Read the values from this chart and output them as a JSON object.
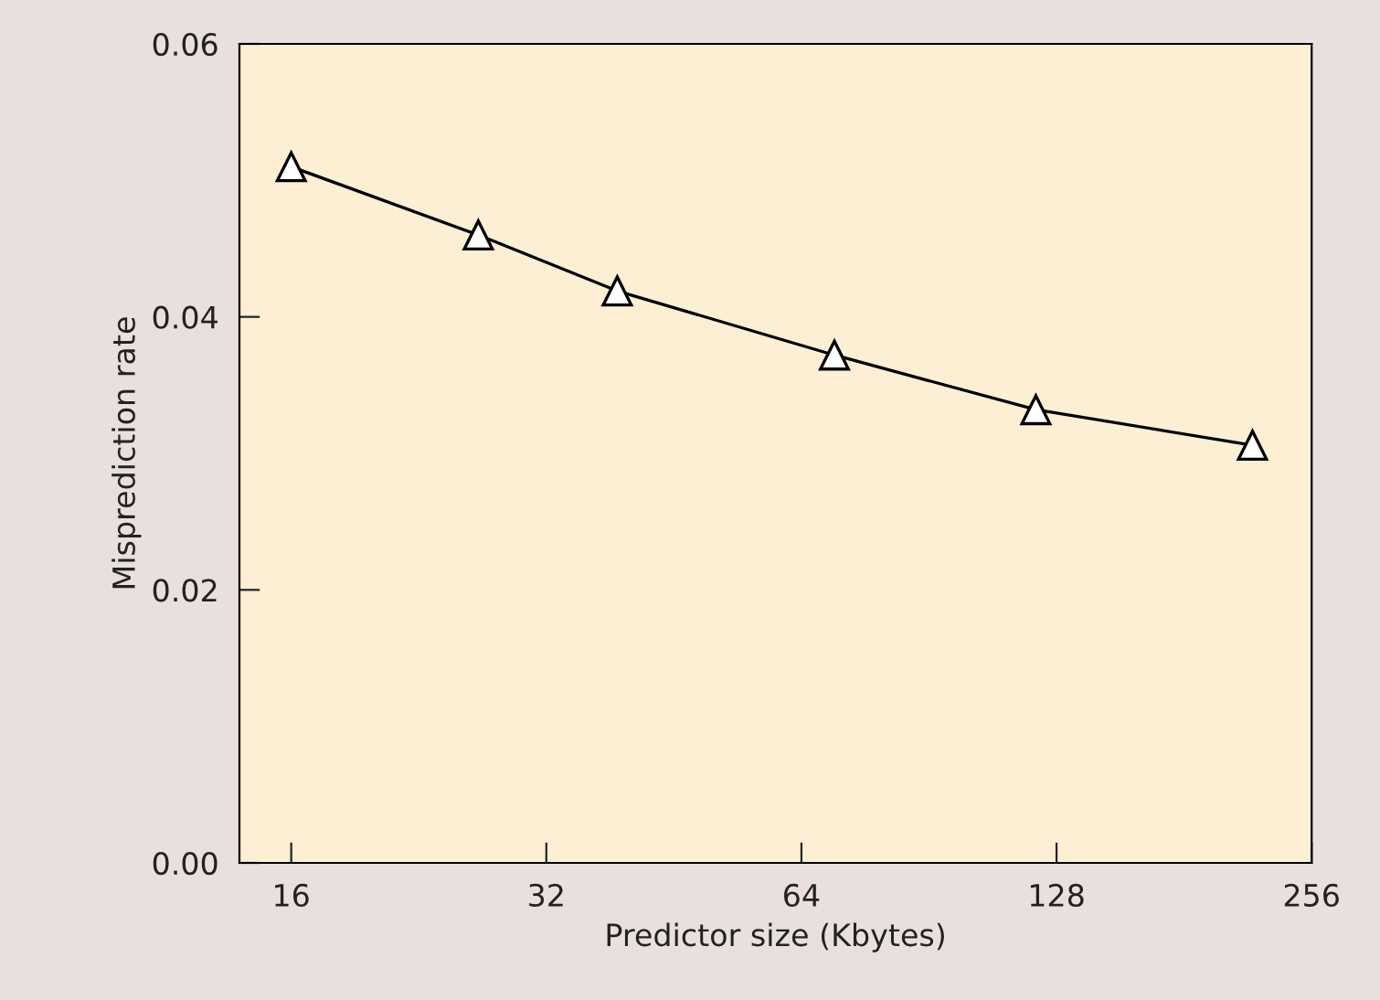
{
  "chart_data": {
    "type": "line",
    "xlabel": "Predictor size (Kbytes)",
    "ylabel": "Misprediction rate",
    "x": [
      16,
      26.6,
      38.8,
      70,
      121,
      218
    ],
    "series": [
      {
        "color": "#000000",
        "values": [
          0.051,
          0.046,
          0.0419,
          0.0372,
          0.0332,
          0.0306
        ]
      }
    ],
    "log": "x",
    "xlim": [
      13.9,
      256
    ],
    "xticks": [
      16,
      32,
      64,
      128,
      256
    ],
    "ylim": [
      0,
      0.06
    ],
    "yticks": [
      {
        "value": 0,
        "label": "0.00"
      },
      {
        "value": 0.02,
        "label": "0.02"
      },
      {
        "value": 0.04,
        "label": "0.04"
      },
      {
        "value": 0.06,
        "label": "0.06"
      }
    ],
    "marker": "triangle",
    "line_style": "solid",
    "grid": false
  }
}
